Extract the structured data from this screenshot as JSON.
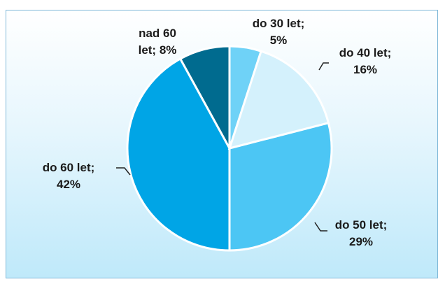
{
  "chart_data": {
    "type": "pie",
    "categories": [
      "do 30 let;",
      "do 40 let;",
      "do 50 let;",
      "do 60 let;",
      "nad 60 let;"
    ],
    "values": [
      5,
      16,
      29,
      42,
      8
    ],
    "value_labels": [
      "5%",
      "16%",
      "29%",
      "42%",
      "8%"
    ],
    "colors": [
      "#6fd2f7",
      "#d4f1fc",
      "#4cc6f4",
      "#00a5e6",
      "#006b8f"
    ]
  }
}
